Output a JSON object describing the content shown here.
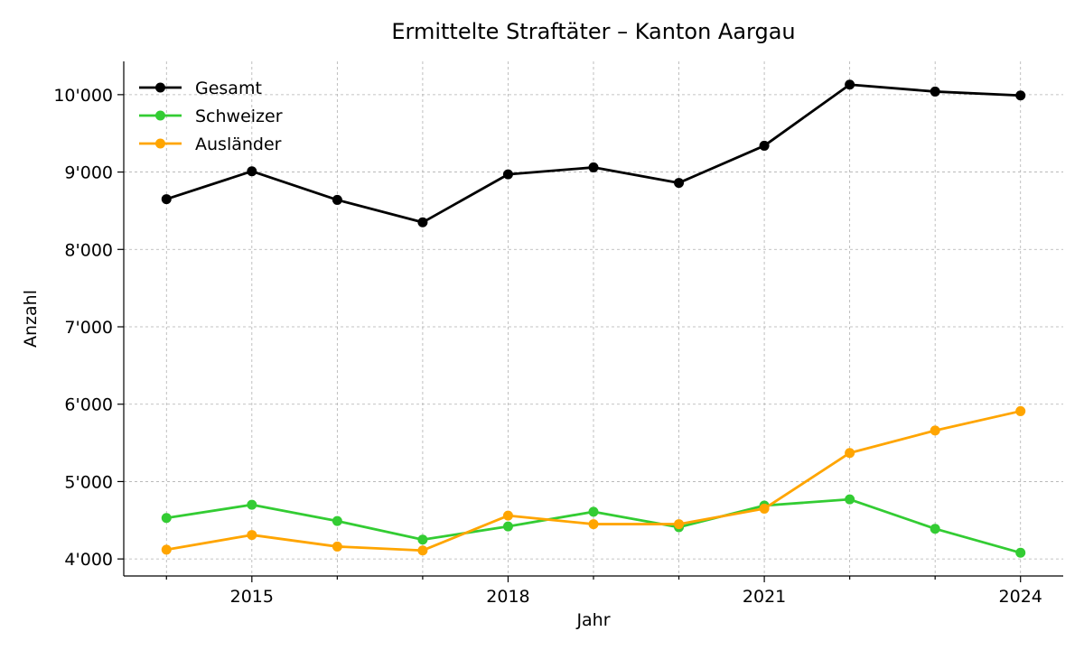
{
  "chart_data": {
    "type": "line",
    "title": "Ermittelte Straftäter – Kanton Aargau",
    "xlabel": "Jahr",
    "ylabel": "Anzahl",
    "x": [
      2014,
      2015,
      2016,
      2017,
      2018,
      2019,
      2020,
      2021,
      2022,
      2023,
      2024
    ],
    "xlim": [
      2013.5,
      2024.5
    ],
    "xticks": [
      2015,
      2018,
      2021,
      2024
    ],
    "xtick_labels": [
      "2015",
      "2018",
      "2021",
      "2024"
    ],
    "ylim": [
      3780,
      10430
    ],
    "yticks": [
      4000,
      5000,
      6000,
      7000,
      8000,
      9000,
      10000
    ],
    "ytick_labels": [
      "4'000",
      "5'000",
      "6'000",
      "7'000",
      "8'000",
      "9'000",
      "10'000"
    ],
    "grid": true,
    "legend_position": "top-left",
    "series": [
      {
        "name": "Gesamt",
        "color": "#000000",
        "values": [
          8650,
          9010,
          8640,
          8350,
          8970,
          9060,
          8860,
          9340,
          10130,
          10040,
          9990
        ]
      },
      {
        "name": "Schweizer",
        "color": "#33cc33",
        "values": [
          4530,
          4700,
          4490,
          4250,
          4420,
          4610,
          4410,
          4690,
          4770,
          4390,
          4080
        ]
      },
      {
        "name": "Ausländer",
        "color": "#ffa500",
        "values": [
          4120,
          4310,
          4160,
          4110,
          4560,
          4450,
          4450,
          4650,
          5370,
          5660,
          5910
        ]
      }
    ]
  }
}
